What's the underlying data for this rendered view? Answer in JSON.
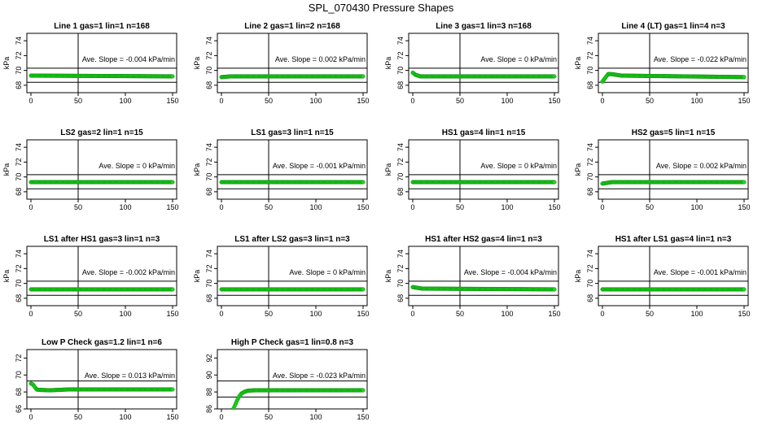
{
  "page_title": "SPL_070430  Pressure Shapes",
  "chart_data": [
    {
      "type": "scatter",
      "title": "Line 1 gas=1 lin=1 n=168",
      "ylabel": "kPa",
      "xlim": [
        0,
        150
      ],
      "ylim": [
        67,
        75
      ],
      "yticks": [
        68,
        70,
        72,
        74
      ],
      "xticks": [
        0,
        50,
        100,
        150
      ],
      "hlines": [
        70.3,
        68.4
      ],
      "vline": 50,
      "annotation": "Ave. Slope = -0.004  kPa/min",
      "points": [
        [
          0,
          69.3
        ],
        [
          150,
          69.2
        ]
      ]
    },
    {
      "type": "scatter",
      "title": "Line 2 gas=1 lin=2 n=168",
      "ylabel": "kPa",
      "xlim": [
        0,
        150
      ],
      "ylim": [
        67,
        75
      ],
      "yticks": [
        68,
        70,
        72,
        74
      ],
      "xticks": [
        0,
        50,
        100,
        150
      ],
      "hlines": [
        70.3,
        68.4
      ],
      "vline": 50,
      "annotation": "Ave. Slope =  0.002  kPa/min",
      "points": [
        [
          0,
          69.1
        ],
        [
          10,
          69.2
        ],
        [
          150,
          69.2
        ]
      ]
    },
    {
      "type": "scatter",
      "title": "Line 3 gas=1 lin=3 n=168",
      "ylabel": "kPa",
      "xlim": [
        0,
        150
      ],
      "ylim": [
        67,
        75
      ],
      "yticks": [
        68,
        70,
        72,
        74
      ],
      "xticks": [
        0,
        50,
        100,
        150
      ],
      "hlines": [
        70.3,
        68.4
      ],
      "vline": 50,
      "annotation": "Ave. Slope = 0  kPa/min",
      "points": [
        [
          0,
          69.7
        ],
        [
          3,
          69.4
        ],
        [
          8,
          69.2
        ],
        [
          150,
          69.2
        ]
      ]
    },
    {
      "type": "scatter",
      "title": "Line 4 (LT) gas=1 lin=4 n=3",
      "ylabel": "kPa",
      "xlim": [
        0,
        150
      ],
      "ylim": [
        67,
        75
      ],
      "yticks": [
        68,
        70,
        72,
        74
      ],
      "xticks": [
        0,
        50,
        100,
        150
      ],
      "hlines": [
        70.3,
        68.4
      ],
      "vline": 50,
      "annotation": "Ave. Slope = -0.022  kPa/min",
      "points": [
        [
          0,
          68.5
        ],
        [
          3,
          69.0
        ],
        [
          6,
          69.5
        ],
        [
          10,
          69.5
        ],
        [
          20,
          69.3
        ],
        [
          150,
          69.1
        ]
      ]
    },
    {
      "type": "scatter",
      "title": "LS2 gas=2 lin=1 n=15",
      "ylabel": "kPa",
      "xlim": [
        0,
        150
      ],
      "ylim": [
        67,
        75
      ],
      "yticks": [
        68,
        70,
        72,
        74
      ],
      "xticks": [
        0,
        50,
        100,
        150
      ],
      "hlines": [
        70.3,
        68.4
      ],
      "vline": 50,
      "annotation": "Ave. Slope = 0  kPa/min",
      "points": [
        [
          0,
          69.3
        ],
        [
          150,
          69.3
        ]
      ]
    },
    {
      "type": "scatter",
      "title": "LS1 gas=3 lin=1 n=15",
      "ylabel": "kPa",
      "xlim": [
        0,
        150
      ],
      "ylim": [
        67,
        75
      ],
      "yticks": [
        68,
        70,
        72,
        74
      ],
      "xticks": [
        0,
        50,
        100,
        150
      ],
      "hlines": [
        70.3,
        68.4
      ],
      "vline": 50,
      "annotation": "Ave. Slope = -0.001  kPa/min",
      "points": [
        [
          0,
          69.3
        ],
        [
          150,
          69.3
        ]
      ]
    },
    {
      "type": "scatter",
      "title": "HS1 gas=4 lin=1 n=15",
      "ylabel": "kPa",
      "xlim": [
        0,
        150
      ],
      "ylim": [
        67,
        75
      ],
      "yticks": [
        68,
        70,
        72,
        74
      ],
      "xticks": [
        0,
        50,
        100,
        150
      ],
      "hlines": [
        70.3,
        68.4
      ],
      "vline": 50,
      "annotation": "Ave. Slope = 0  kPa/min",
      "points": [
        [
          0,
          69.3
        ],
        [
          150,
          69.3
        ]
      ]
    },
    {
      "type": "scatter",
      "title": "HS2 gas=5 lin=1 n=15",
      "ylabel": "kPa",
      "xlim": [
        0,
        150
      ],
      "ylim": [
        67,
        75
      ],
      "yticks": [
        68,
        70,
        72,
        74
      ],
      "xticks": [
        0,
        50,
        100,
        150
      ],
      "hlines": [
        70.3,
        68.4
      ],
      "vline": 50,
      "annotation": "Ave. Slope =  0.002  kPa/min",
      "points": [
        [
          0,
          69.1
        ],
        [
          10,
          69.3
        ],
        [
          150,
          69.3
        ]
      ]
    },
    {
      "type": "scatter",
      "title": "LS1 after HS1 gas=3 lin=1 n=3",
      "ylabel": "kPa",
      "xlim": [
        0,
        150
      ],
      "ylim": [
        67,
        75
      ],
      "yticks": [
        68,
        70,
        72,
        74
      ],
      "xticks": [
        0,
        50,
        100,
        150
      ],
      "hlines": [
        70.3,
        68.4
      ],
      "vline": 50,
      "annotation": "Ave. Slope = -0.002  kPa/min",
      "points": [
        [
          0,
          69.2
        ],
        [
          150,
          69.2
        ]
      ]
    },
    {
      "type": "scatter",
      "title": "LS1 after LS2 gas=3 lin=1 n=3",
      "ylabel": "kPa",
      "xlim": [
        0,
        150
      ],
      "ylim": [
        67,
        75
      ],
      "yticks": [
        68,
        70,
        72,
        74
      ],
      "xticks": [
        0,
        50,
        100,
        150
      ],
      "hlines": [
        70.3,
        68.4
      ],
      "vline": 50,
      "annotation": "Ave. Slope = 0  kPa/min",
      "points": [
        [
          0,
          69.2
        ],
        [
          150,
          69.2
        ]
      ]
    },
    {
      "type": "scatter",
      "title": "HS1 after HS2 gas=4 lin=1 n=3",
      "ylabel": "kPa",
      "xlim": [
        0,
        150
      ],
      "ylim": [
        67,
        75
      ],
      "yticks": [
        68,
        70,
        72,
        74
      ],
      "xticks": [
        0,
        50,
        100,
        150
      ],
      "hlines": [
        70.3,
        68.4
      ],
      "vline": 50,
      "annotation": "Ave. Slope = -0.004  kPa/min",
      "points": [
        [
          0,
          69.5
        ],
        [
          10,
          69.3
        ],
        [
          150,
          69.2
        ]
      ]
    },
    {
      "type": "scatter",
      "title": "HS1 after LS1 gas=4 lin=1 n=3",
      "ylabel": "kPa",
      "xlim": [
        0,
        150
      ],
      "ylim": [
        67,
        75
      ],
      "yticks": [
        68,
        70,
        72,
        74
      ],
      "xticks": [
        0,
        50,
        100,
        150
      ],
      "hlines": [
        70.3,
        68.4
      ],
      "vline": 50,
      "annotation": "Ave. Slope = -0.001  kPa/min",
      "points": [
        [
          0,
          69.2
        ],
        [
          150,
          69.2
        ]
      ]
    },
    {
      "type": "scatter",
      "title": "Low P Check gas=1.2 lin=1 n=6",
      "ylabel": "",
      "xlim": [
        0,
        150
      ],
      "ylim": [
        66,
        73
      ],
      "yticks": [
        66,
        68,
        70,
        72
      ],
      "xticks": [
        0,
        50,
        100,
        150
      ],
      "hlines": [
        69.3,
        67.4
      ],
      "vline": 50,
      "annotation": "Ave. Slope =  0.013  kPa/min",
      "points": [
        [
          0,
          69.0
        ],
        [
          2,
          68.9
        ],
        [
          4,
          68.6
        ],
        [
          6,
          68.3
        ],
        [
          8,
          68.25
        ],
        [
          20,
          68.2
        ],
        [
          40,
          68.3
        ],
        [
          150,
          68.3
        ]
      ]
    },
    {
      "type": "scatter",
      "title": "High P Check gas=1 lin=0.8 n=3",
      "ylabel": "",
      "xlim": [
        0,
        150
      ],
      "ylim": [
        86,
        93
      ],
      "yticks": [
        86,
        88,
        90,
        92
      ],
      "xticks": [
        0,
        50,
        100,
        150
      ],
      "hlines": [
        89.3,
        87.4
      ],
      "vline": 50,
      "annotation": "Ave. Slope = -0.023  kPa/min",
      "points": [
        [
          13,
          86.1
        ],
        [
          15,
          86.6
        ],
        [
          17,
          87.1
        ],
        [
          19,
          87.5
        ],
        [
          21,
          87.8
        ],
        [
          24,
          88.0
        ],
        [
          28,
          88.15
        ],
        [
          35,
          88.2
        ],
        [
          150,
          88.2
        ]
      ]
    }
  ]
}
